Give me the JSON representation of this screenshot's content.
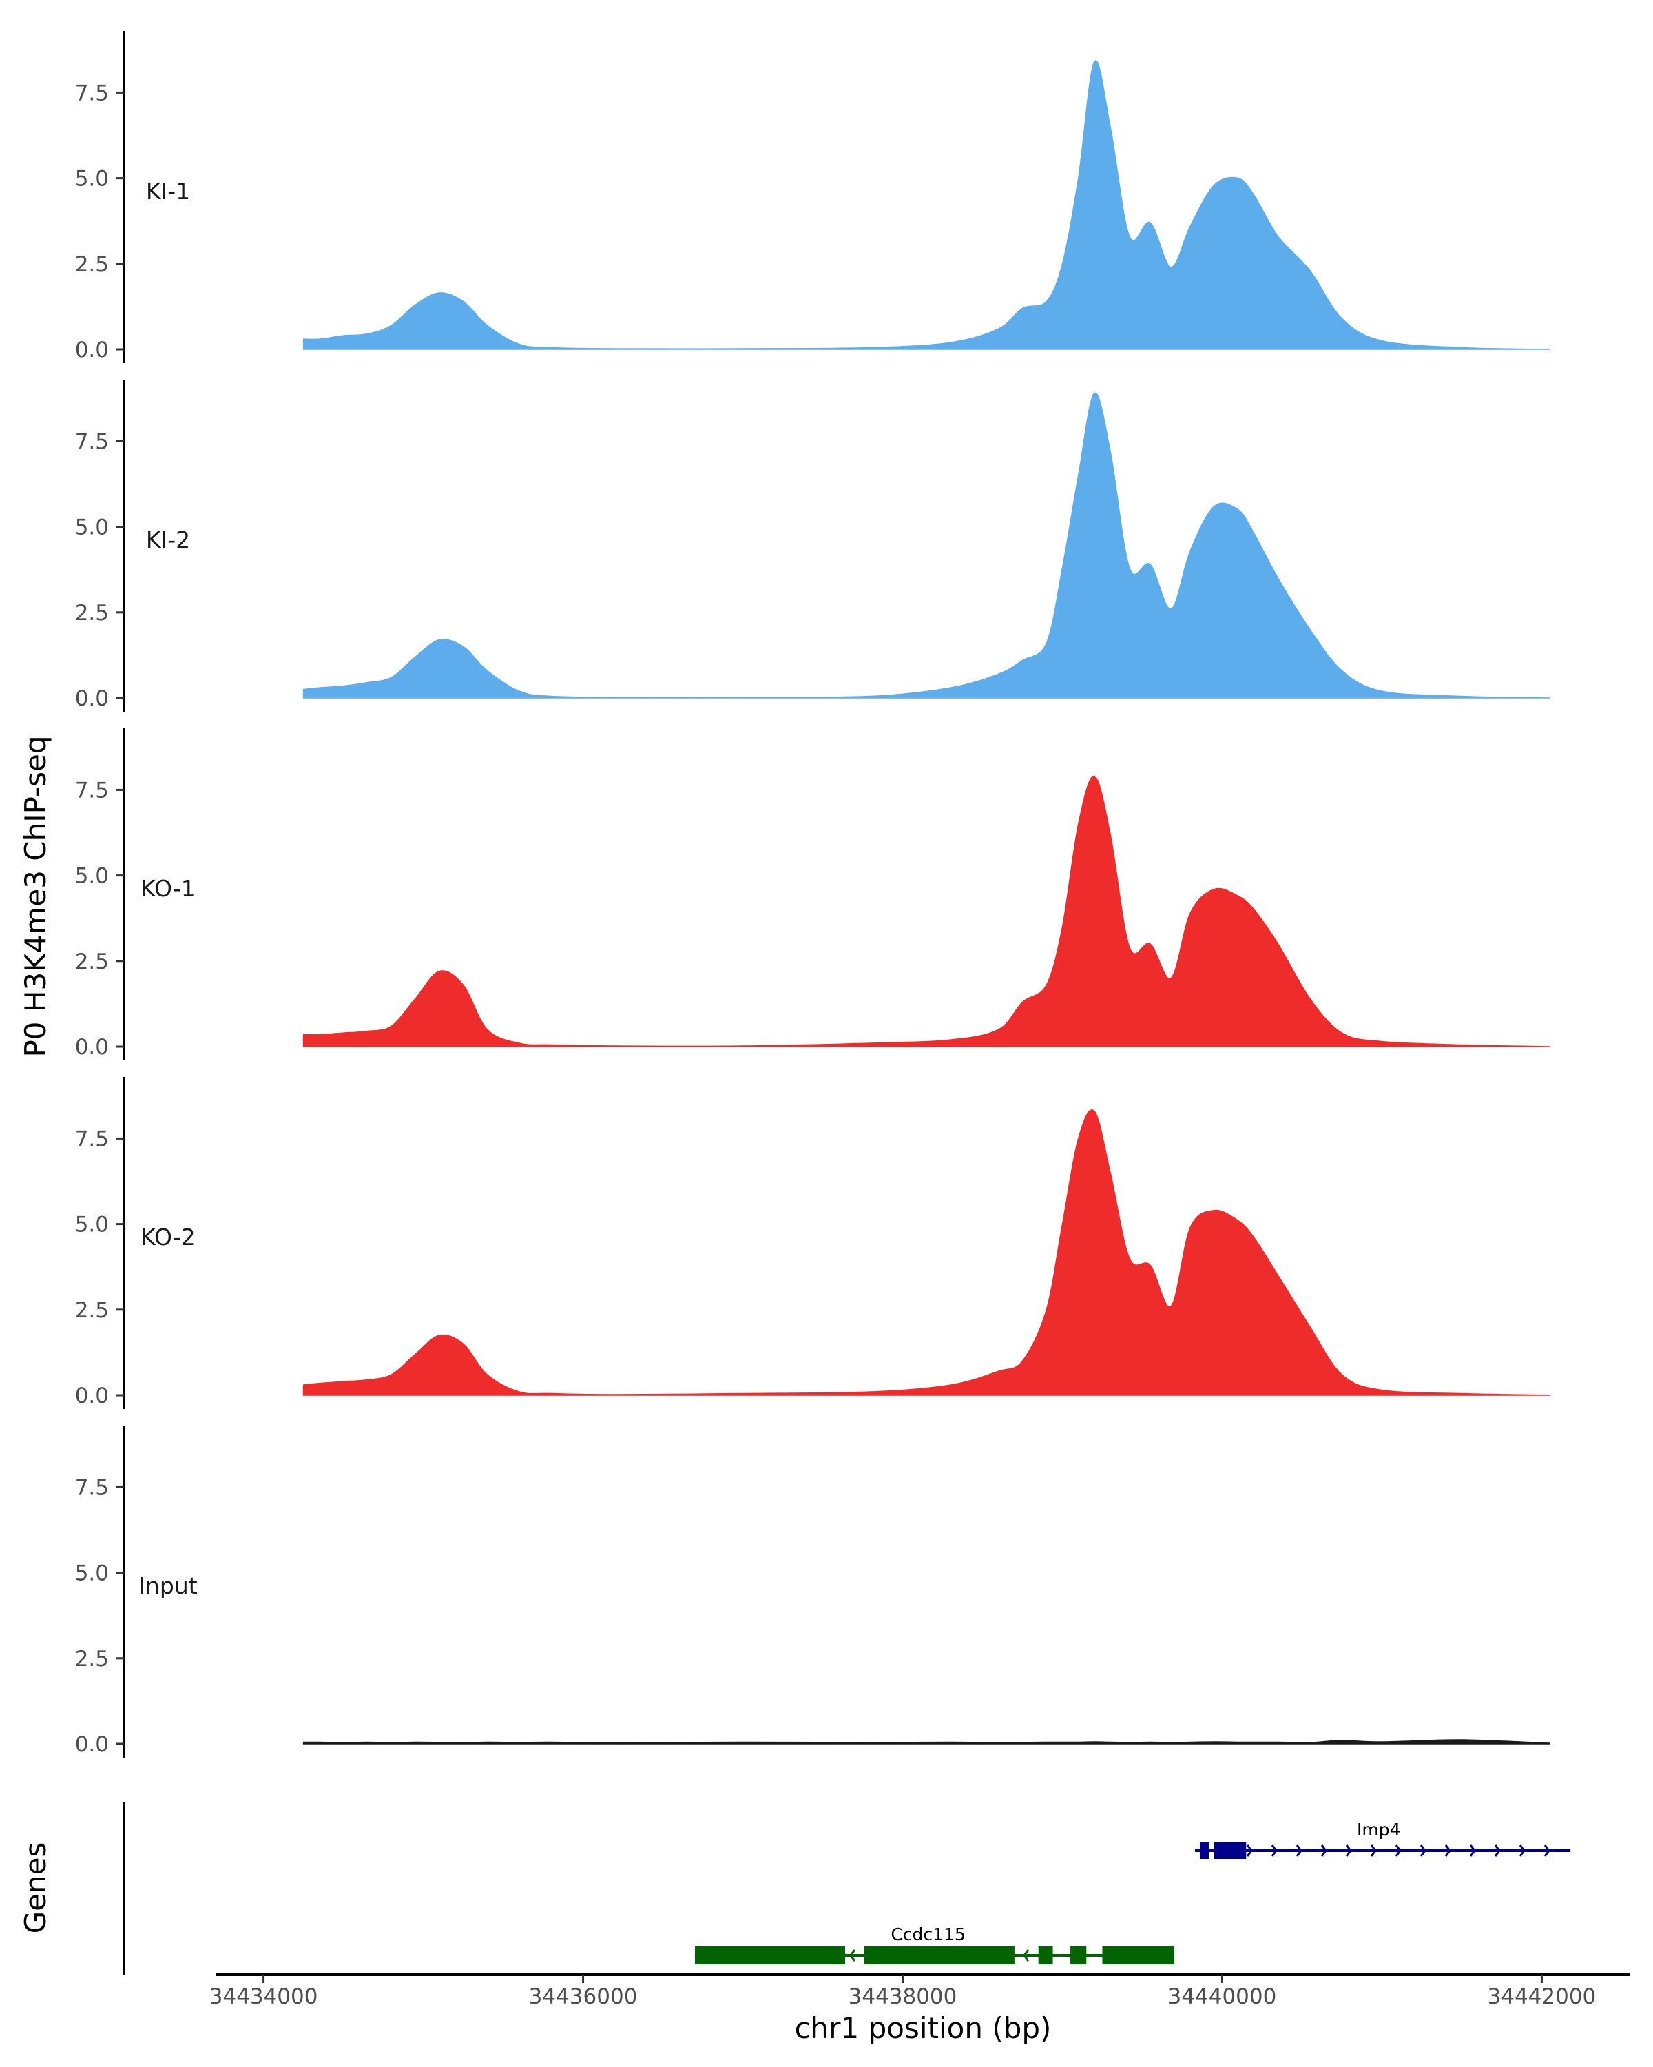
{
  "chart_data": {
    "type": "area",
    "ylabel": "P0 H3K4me3 ChIP-seq",
    "xlabel": "chr1 position (bp)",
    "xlim": [
      34433700,
      34442550
    ],
    "ylim": [
      0,
      9.3
    ],
    "x_ticks": [
      34434000,
      34436000,
      34438000,
      34440000,
      34442000
    ],
    "x_tick_labels": [
      "34434000",
      "34436000",
      "34438000",
      "34440000",
      "34442000"
    ],
    "y_ticks": [
      0,
      2.5,
      5,
      7.5
    ],
    "y_tick_labels": [
      "0.0",
      "2.5",
      "5.0",
      "7.5"
    ],
    "x": [
      34434250,
      34434350,
      34434500,
      34434650,
      34434800,
      34434950,
      34435100,
      34435250,
      34435400,
      34435600,
      34435800,
      34436200,
      34437000,
      34437800,
      34438300,
      34438600,
      34438750,
      34438900,
      34439000,
      34439100,
      34439200,
      34439300,
      34439420,
      34439550,
      34439680,
      34439800,
      34439950,
      34440100,
      34440200,
      34440350,
      34440550,
      34440750,
      34441000,
      34441500,
      34442050
    ],
    "series": [
      {
        "name": "KI-1",
        "color": "#5DADEC",
        "values": [
          0.3,
          0.3,
          0.4,
          0.45,
          0.7,
          1.3,
          1.65,
          1.4,
          0.7,
          0.15,
          0.05,
          0.02,
          0.02,
          0.05,
          0.2,
          0.6,
          1.2,
          1.4,
          2.5,
          5.0,
          8.4,
          6.5,
          3.3,
          3.7,
          2.4,
          3.6,
          4.8,
          5.0,
          4.5,
          3.3,
          2.3,
          0.9,
          0.25,
          0.05,
          0.0
        ]
      },
      {
        "name": "KI-2",
        "color": "#5DADEC",
        "values": [
          0.25,
          0.3,
          0.35,
          0.45,
          0.6,
          1.2,
          1.7,
          1.5,
          0.8,
          0.2,
          0.05,
          0.02,
          0.02,
          0.05,
          0.3,
          0.7,
          1.1,
          1.6,
          3.8,
          6.5,
          8.9,
          7.2,
          3.8,
          3.9,
          2.6,
          4.3,
          5.6,
          5.5,
          4.8,
          3.5,
          2.0,
          0.8,
          0.2,
          0.05,
          0.0
        ]
      },
      {
        "name": "KO-1",
        "color": "#EE2C2C",
        "values": [
          0.35,
          0.35,
          0.4,
          0.45,
          0.6,
          1.4,
          2.2,
          1.8,
          0.5,
          0.1,
          0.05,
          0.02,
          0.02,
          0.1,
          0.2,
          0.5,
          1.3,
          1.8,
          3.5,
          6.5,
          7.9,
          6.2,
          2.9,
          3.0,
          2.0,
          3.9,
          4.6,
          4.4,
          4.0,
          3.0,
          1.4,
          0.4,
          0.15,
          0.05,
          0.0
        ]
      },
      {
        "name": "KO-2",
        "color": "#EE2C2C",
        "values": [
          0.3,
          0.35,
          0.4,
          0.45,
          0.6,
          1.2,
          1.75,
          1.5,
          0.6,
          0.1,
          0.05,
          0.02,
          0.05,
          0.1,
          0.3,
          0.7,
          1.0,
          2.5,
          5.0,
          7.5,
          8.3,
          6.5,
          4.0,
          3.8,
          2.6,
          4.9,
          5.4,
          5.1,
          4.6,
          3.5,
          2.0,
          0.6,
          0.15,
          0.05,
          0.0
        ]
      },
      {
        "name": "Input",
        "color": "#1a1a1a",
        "values": [
          0.05,
          0.05,
          0.03,
          0.05,
          0.03,
          0.05,
          0.04,
          0.03,
          0.05,
          0.04,
          0.05,
          0.03,
          0.05,
          0.04,
          0.05,
          0.03,
          0.04,
          0.05,
          0.05,
          0.05,
          0.06,
          0.05,
          0.04,
          0.05,
          0.04,
          0.05,
          0.06,
          0.05,
          0.05,
          0.05,
          0.04,
          0.1,
          0.06,
          0.12,
          0.02
        ]
      }
    ],
    "genes_track": {
      "title": "Genes",
      "genes": [
        {
          "name": "Imp4",
          "strand": "+",
          "color": "#00008B",
          "start": 34439830,
          "end": 34442180,
          "exons": [
            [
              34439860,
              34439920
            ],
            [
              34439950,
              34440150
            ]
          ]
        },
        {
          "name": "Ccdc115",
          "strand": "-",
          "color": "#006400",
          "start": 34436700,
          "end": 34439700,
          "exons": [
            [
              34436700,
              34437640
            ],
            [
              34437760,
              34438700
            ],
            [
              34438850,
              34438940
            ],
            [
              34439050,
              34439150
            ],
            [
              34439250,
              34439700
            ]
          ]
        }
      ]
    }
  }
}
